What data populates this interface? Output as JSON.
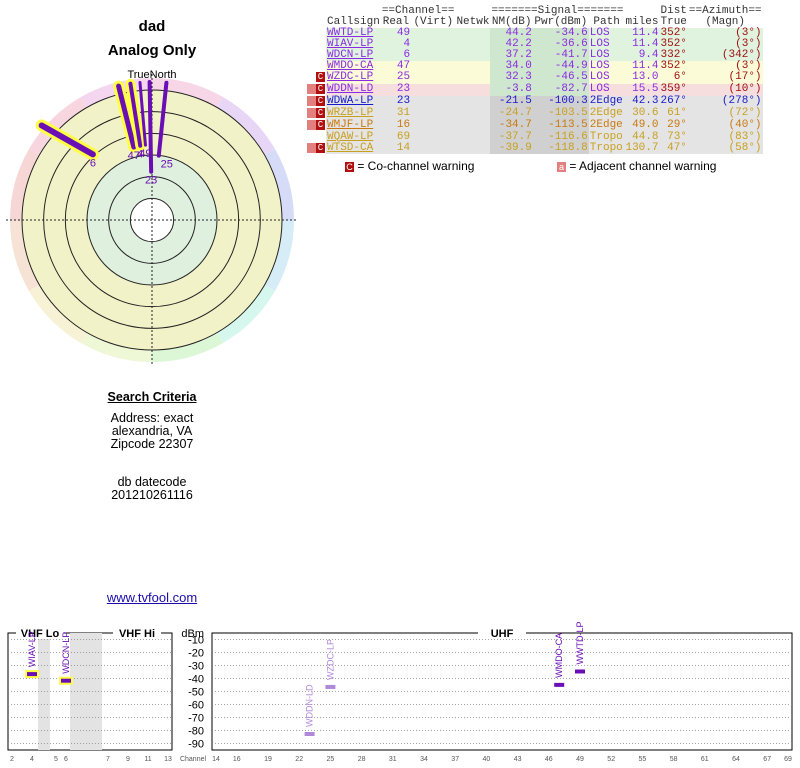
{
  "header": {
    "title": "dad",
    "subtitle": "Analog Only"
  },
  "radar": {
    "label_true_north": "TrueNorth",
    "label_n": "N",
    "ring_count": 6,
    "colors": {
      "line": "#6a0fb5",
      "highlight": "#ffff44",
      "strong_ring": "#f2f2c8",
      "weak_ring": "#dff0df"
    }
  },
  "criteria": {
    "heading": "Search Criteria",
    "address_line": "Address: exact",
    "city": "alexandria, VA",
    "zipcode": "Zipcode 22307",
    "db_label": "db datecode",
    "db_value": "201210261116"
  },
  "footer_link": "www.tvfool.com",
  "table": {
    "header_row1": [
      "",
      "==Channel==",
      "",
      "=======Signal=======",
      "",
      "Dist",
      "==Azimuth=="
    ],
    "columns": [
      "Callsign",
      "Real",
      "(Virt)",
      "Netwk",
      "NM(dB)",
      "Pwr(dBm)",
      "Path",
      "miles",
      "True",
      "(Magn)"
    ],
    "rows": [
      {
        "warn": "",
        "callsign": "WWTD-LP",
        "real": "49",
        "virt": "",
        "netwk": "",
        "nm": "44.2",
        "pwr": "-34.6",
        "path": "LOS",
        "dist": "11.4",
        "true_az": "352°",
        "magn": "(3°)",
        "band": "green",
        "color": "#8a2be2"
      },
      {
        "warn": "",
        "callsign": "WIAV-LP",
        "real": "4",
        "virt": "",
        "netwk": "",
        "nm": "42.2",
        "pwr": "-36.6",
        "path": "LOS",
        "dist": "11.4",
        "true_az": "352°",
        "magn": "(3°)",
        "band": "green",
        "color": "#8a2be2"
      },
      {
        "warn": "",
        "callsign": "WDCN-LP",
        "real": "6",
        "virt": "",
        "netwk": "",
        "nm": "37.2",
        "pwr": "-41.7",
        "path": "LOS",
        "dist": "9.4",
        "true_az": "332°",
        "magn": "(342°)",
        "band": "green",
        "color": "#8a2be2"
      },
      {
        "warn": "",
        "callsign": "WMDO-CA",
        "real": "47",
        "virt": "",
        "netwk": "",
        "nm": "34.0",
        "pwr": "-44.9",
        "path": "LOS",
        "dist": "11.4",
        "true_az": "352°",
        "magn": "(3°)",
        "band": "yellow",
        "color": "#8a2be2"
      },
      {
        "warn": "C",
        "callsign": "WZDC-LP",
        "real": "25",
        "virt": "",
        "netwk": "",
        "nm": "32.3",
        "pwr": "-46.5",
        "path": "LOS",
        "dist": "13.0",
        "true_az": "6°",
        "magn": "(17°)",
        "band": "yellow",
        "color": "#8a2be2"
      },
      {
        "warn": "AC",
        "callsign": "WDDN-LD",
        "real": "23",
        "virt": "",
        "netwk": "",
        "nm": "-3.8",
        "pwr": "-82.7",
        "path": "LOS",
        "dist": "15.5",
        "true_az": "359°",
        "magn": "(10°)",
        "band": "pink",
        "color": "#8a2be2"
      },
      {
        "warn": "AC",
        "callsign": "WDWA-LP",
        "real": "23",
        "virt": "",
        "netwk": "",
        "nm": "-21.5",
        "pwr": "-100.3",
        "path": "2Edge",
        "dist": "42.3",
        "true_az": "267°",
        "magn": "(278°)",
        "band": "gray",
        "color": "#1a1acc"
      },
      {
        "warn": "AC",
        "callsign": "WRZB-LP",
        "real": "31",
        "virt": "",
        "netwk": "",
        "nm": "-24.7",
        "pwr": "-103.5",
        "path": "2Edge",
        "dist": "30.6",
        "true_az": "61°",
        "magn": "(72°)",
        "band": "gray",
        "color": "#c8a020"
      },
      {
        "warn": "AC",
        "callsign": "WMJF-LP",
        "real": "16",
        "virt": "",
        "netwk": "",
        "nm": "-34.7",
        "pwr": "-113.5",
        "path": "2Edge",
        "dist": "49.0",
        "true_az": "29°",
        "magn": "(40°)",
        "band": "gray",
        "color": "#c87a10"
      },
      {
        "warn": "",
        "callsign": "WQAW-LP",
        "real": "69",
        "virt": "",
        "netwk": "",
        "nm": "-37.7",
        "pwr": "-116.6",
        "path": "Tropo",
        "dist": "44.8",
        "true_az": "73°",
        "magn": "(83°)",
        "band": "gray",
        "color": "#c8a020"
      },
      {
        "warn": "AC",
        "callsign": "WTSD-CA",
        "real": "14",
        "virt": "",
        "netwk": "",
        "nm": "-39.9",
        "pwr": "-118.8",
        "path": "Tropo",
        "dist": "130.7",
        "true_az": "47°",
        "magn": "(58°)",
        "band": "gray",
        "color": "#c8a020"
      }
    ],
    "legend": {
      "co_symbol": "C",
      "co_text": "= Co-channel warning",
      "adj_symbol": "a",
      "adj_text": "= Adjacent channel warning"
    }
  },
  "chart_data": [
    {
      "type": "scatter",
      "chart": "radar",
      "markers": [
        {
          "label": "6",
          "azimuth_true": 332,
          "distance_miles": 9.4
        },
        {
          "label": "47",
          "azimuth_true": 352,
          "distance_miles": 11.4
        },
        {
          "label": "4",
          "azimuth_true": 352,
          "distance_miles": 11.4
        },
        {
          "label": "49",
          "azimuth_true": 352,
          "distance_miles": 11.4
        },
        {
          "label": "23",
          "azimuth_true": 359,
          "distance_miles": 15.5
        },
        {
          "label": "25",
          "azimuth_true": 6,
          "distance_miles": 13.0
        }
      ]
    },
    {
      "type": "bar",
      "chart": "spectrum",
      "ylabel": "dBm",
      "y_ticks": [
        "-10",
        "-20",
        "-30",
        "-40",
        "-50",
        "-60",
        "-70",
        "-80",
        "-90"
      ],
      "ylim": [
        -95,
        -5
      ],
      "bands": [
        {
          "name": "VHF Lo",
          "channels": [
            2,
            6
          ]
        },
        {
          "name": "VHF Hi",
          "channels": [
            7,
            13
          ]
        },
        {
          "name": "UHF",
          "channels": [
            14,
            69
          ]
        }
      ],
      "x_label": "Channel",
      "vhf_lo_ticks": [
        "2",
        "4",
        "5",
        "6"
      ],
      "vhf_hi_ticks": [
        "7",
        "9",
        "11",
        "13"
      ],
      "uhf_ticks": [
        "14",
        "16",
        "19",
        "22",
        "25",
        "28",
        "31",
        "34",
        "37",
        "40",
        "43",
        "46",
        "49",
        "52",
        "55",
        "58",
        "61",
        "64",
        "67",
        "69"
      ],
      "stations": [
        {
          "callsign": "WIAV-LP",
          "channel": 4,
          "power_dbm": -36.6,
          "highlight": true,
          "color": "#6a0fb5"
        },
        {
          "callsign": "WDCN-LP",
          "channel": 6,
          "power_dbm": -41.7,
          "highlight": true,
          "color": "#6a0fb5"
        },
        {
          "callsign": "WDDN-LD",
          "channel": 23,
          "power_dbm": -82.7,
          "highlight": false,
          "color": "#b088d8"
        },
        {
          "callsign": "WZDC-LP",
          "channel": 25,
          "power_dbm": -46.5,
          "highlight": false,
          "color": "#b088d8"
        },
        {
          "callsign": "WMDO-CA",
          "channel": 47,
          "power_dbm": -44.9,
          "highlight": false,
          "color": "#6a0fb5"
        },
        {
          "callsign": "WWTD-LP",
          "channel": 49,
          "power_dbm": -34.6,
          "highlight": false,
          "color": "#6a0fb5"
        }
      ]
    }
  ]
}
